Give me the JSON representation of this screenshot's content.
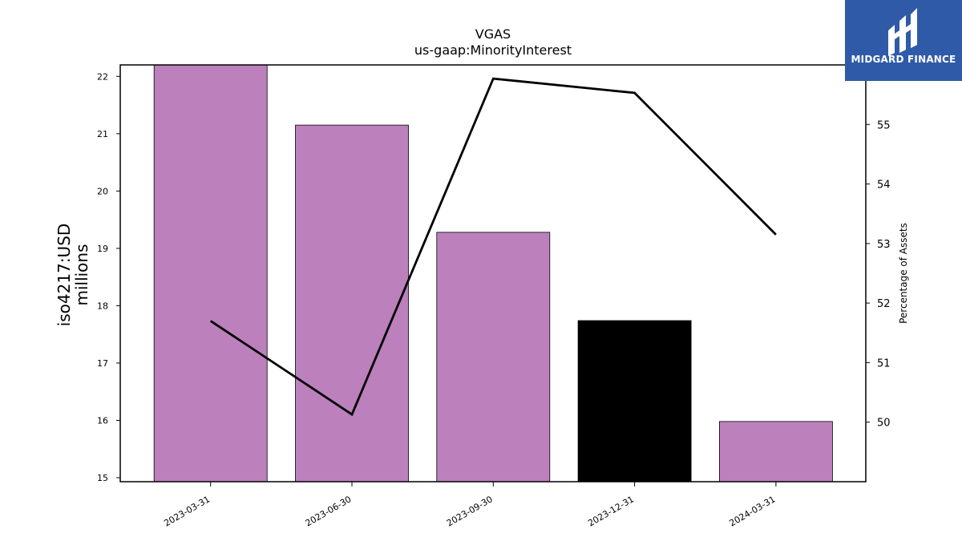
{
  "logo": {
    "text": "MIDGARD FINANCE",
    "bg": "#2f5aa8"
  },
  "chart_data": {
    "type": "bar",
    "title": "VGAS",
    "subtitle": "us-gaap:MinorityInterest",
    "categories": [
      "2023-03-31",
      "2023-06-30",
      "2023-09-30",
      "2023-12-31",
      "2024-03-31"
    ],
    "series": [
      {
        "type": "bar",
        "values": [
          22.2,
          21.15,
          19.28,
          17.74,
          15.98
        ],
        "colors": [
          "#bc80bd",
          "#bc80bd",
          "#bc80bd",
          "#000000",
          "#bc80bd"
        ]
      },
      {
        "type": "line",
        "axis": "right",
        "values": [
          51.7,
          50.13,
          55.77,
          55.53,
          53.15
        ],
        "color": "#000000"
      }
    ],
    "ylabel_left": "iso4217:USD\nmillions",
    "ylabel_right": "Percentage of Assets",
    "yticks_left": [
      "15",
      "16",
      "17",
      "18",
      "19",
      "20",
      "21",
      "22"
    ],
    "yticks_right": [
      "50",
      "51",
      "52",
      "53",
      "54",
      "55"
    ],
    "ylim_left": [
      14.93,
      22.2
    ],
    "ylim_right": [
      49.0,
      56.0
    ],
    "grid": false
  }
}
